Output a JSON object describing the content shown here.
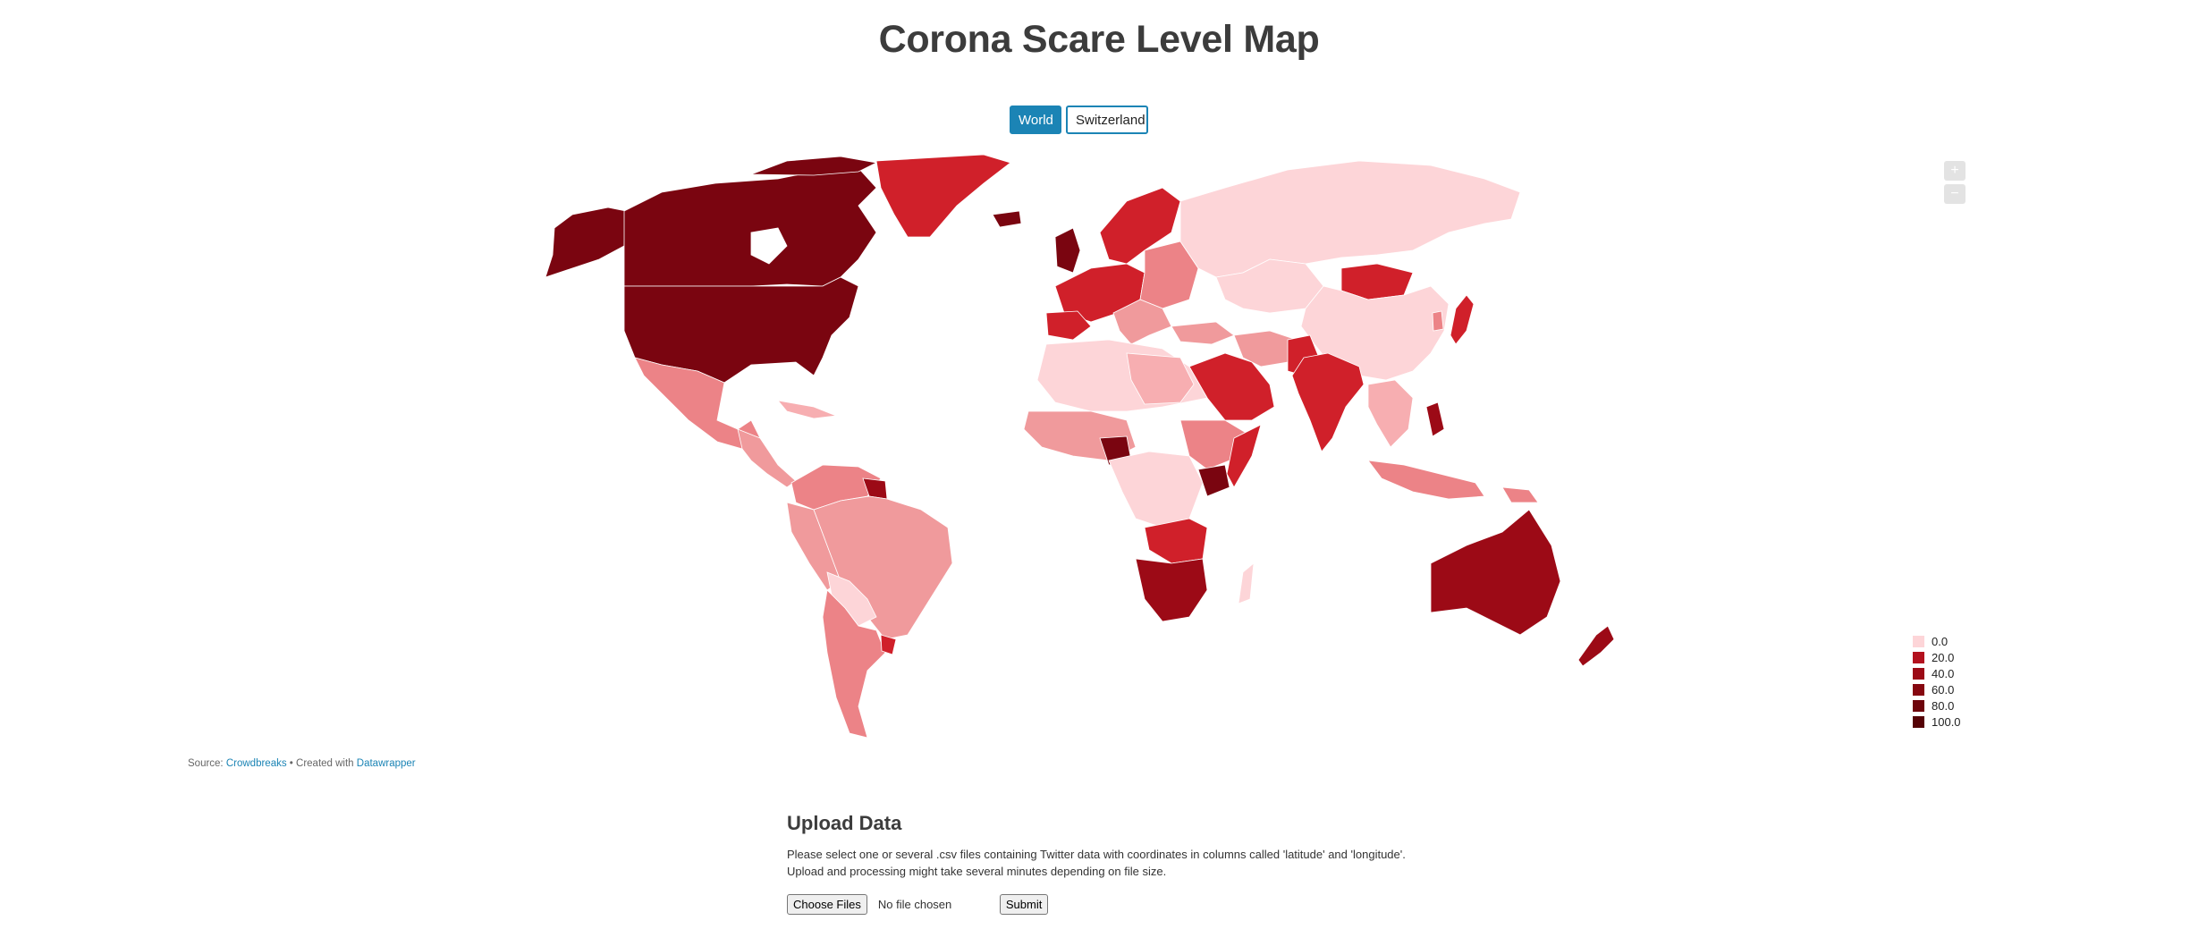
{
  "page": {
    "title": "Corona Scare Level Map"
  },
  "switcher": {
    "world_label": "World",
    "switzerland_label": "Switzerland"
  },
  "zoom": {
    "in_label": "+",
    "out_label": "−"
  },
  "legend": {
    "items": [
      {
        "label": "0.0",
        "color": "#fdd5d8"
      },
      {
        "label": "20.0",
        "color": "#b3111e"
      },
      {
        "label": "40.0",
        "color": "#9c0a16"
      },
      {
        "label": "60.0",
        "color": "#860710"
      },
      {
        "label": "80.0",
        "color": "#6e040b"
      },
      {
        "label": "100.0",
        "color": "#550206"
      }
    ]
  },
  "source": {
    "prefix": "Source:",
    "source_link": "Crowdbreaks",
    "separator": "• Created with",
    "tool_link": "Datawrapper"
  },
  "upload": {
    "heading": "Upload Data",
    "line1": "Please select one or several .csv files containing Twitter data with coordinates in columns called 'latitude' and 'longitude'.",
    "line2": "Upload and processing might take several minutes depending on file size.",
    "choose_label": "Choose Files",
    "no_file_label": "No file chosen",
    "submit_label": "Submit"
  },
  "map_colors": {
    "lightest": "#fdd5d8",
    "light": "#f7aeb1",
    "medium": "#f09a9c",
    "salmon": "#ec8387",
    "red": "#d0202a",
    "dark_red": "#9c0a16",
    "darkest": "#7a0510"
  }
}
